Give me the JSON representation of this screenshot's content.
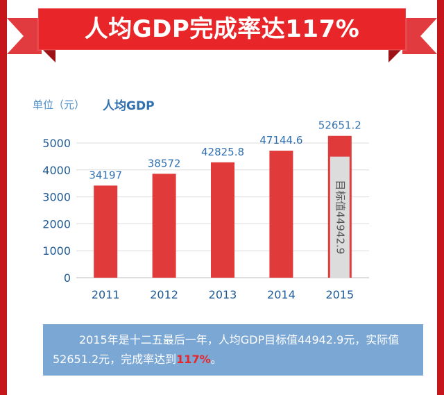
{
  "banner": {
    "title": "人均GDP完成率达117%"
  },
  "chart_data": {
    "type": "bar",
    "unit_label": "单位（元）",
    "series_label": "人均GDP",
    "categories": [
      "2011",
      "2012",
      "2013",
      "2014",
      "2015"
    ],
    "values": [
      34197,
      38572,
      42825.8,
      47144.6,
      52651.2
    ],
    "value_labels": [
      "34197",
      "38572",
      "42825.8",
      "47144.6",
      "52651.2"
    ],
    "target": {
      "category": "2015",
      "value": 44942.9,
      "label": "目标值44942.9"
    },
    "y_ticks": [
      "0",
      "1000",
      "2000",
      "3000",
      "4000",
      "5000"
    ],
    "grid": true,
    "colors": {
      "bar": "#e03a3a",
      "target": "#dcdcdc",
      "axis_text": "#2f6fb0",
      "tick_text": "#1f5a96"
    }
  },
  "note": {
    "text_before": "2015年是十二五最后一年，人均GDP目标值44942.9元，实际值52651.2元，完成率达到",
    "highlight": "117%",
    "text_after": "。"
  }
}
